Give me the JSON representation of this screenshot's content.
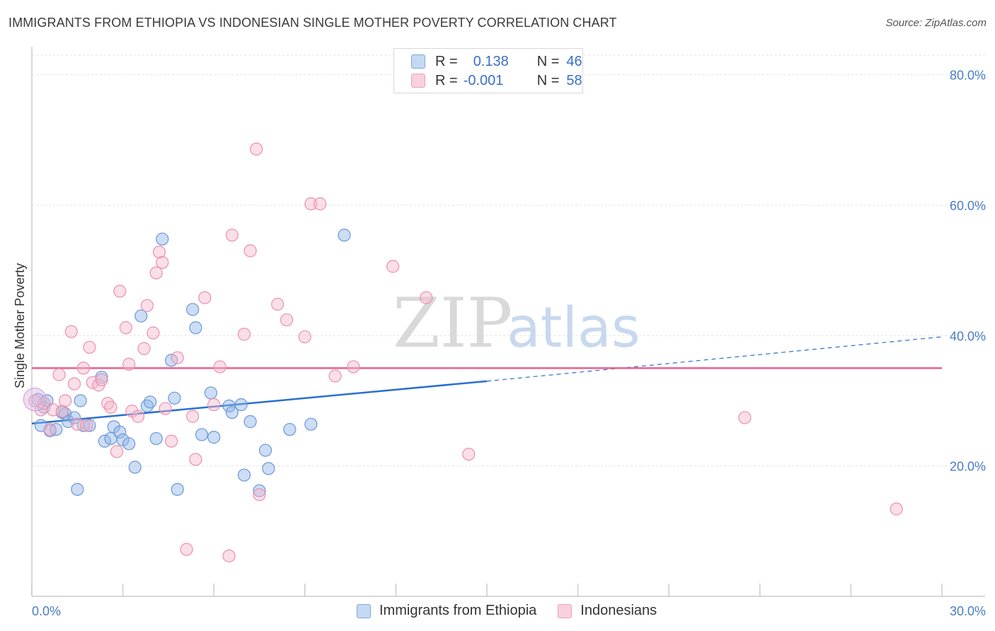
{
  "title": "IMMIGRANTS FROM ETHIOPIA VS INDONESIAN SINGLE MOTHER POVERTY CORRELATION CHART",
  "source": "Source: ZipAtlas.com",
  "watermark": {
    "zip": "ZIP",
    "atlas": "atlas"
  },
  "legend": {
    "rows": [
      {
        "r_label": "R =",
        "r_value": "0.138",
        "n_label": "N =",
        "n_value": "46"
      },
      {
        "r_label": "R =",
        "r_value": "-0.001",
        "n_label": "N =",
        "n_value": "58"
      }
    ]
  },
  "chart_data": {
    "type": "scatter",
    "title": "IMMIGRANTS FROM ETHIOPIA VS INDONESIAN SINGLE MOTHER POVERTY CORRELATION CHART",
    "xlabel": "",
    "ylabel": "Single Mother Poverty",
    "xlim": [
      0,
      30
    ],
    "ylim": [
      0,
      83
    ],
    "x_tick_labels": [
      "0.0%",
      "30.0%"
    ],
    "y_ticks": [
      20,
      40,
      60,
      80
    ],
    "y_tick_labels": [
      "20.0%",
      "40.0%",
      "60.0%",
      "80.0%"
    ],
    "grid": true,
    "legend_position": "top-center",
    "series": [
      {
        "name": "Immigrants from Ethiopia",
        "color": "#8db4e8",
        "stroke": "#6a98d8",
        "line_color": "#2a6fd0",
        "trend": {
          "x0": 0,
          "y0": 26.5,
          "x1": 15,
          "y1": 33.0,
          "dash_to_x": 30,
          "dash_to_y": 39.8
        },
        "points": [
          [
            0.2,
            30.2
          ],
          [
            0.3,
            26.2
          ],
          [
            0.4,
            29.0
          ],
          [
            0.5,
            30.0
          ],
          [
            0.6,
            25.4
          ],
          [
            0.8,
            25.6
          ],
          [
            1.0,
            28.2
          ],
          [
            1.1,
            28.0
          ],
          [
            1.2,
            26.8
          ],
          [
            1.4,
            27.4
          ],
          [
            1.6,
            30.0
          ],
          [
            1.7,
            26.2
          ],
          [
            1.9,
            26.2
          ],
          [
            2.3,
            33.6
          ],
          [
            2.4,
            23.8
          ],
          [
            2.6,
            24.2
          ],
          [
            2.7,
            26.0
          ],
          [
            2.9,
            25.2
          ],
          [
            3.0,
            24.0
          ],
          [
            3.2,
            23.4
          ],
          [
            3.4,
            19.8
          ],
          [
            3.6,
            43.0
          ],
          [
            3.8,
            29.2
          ],
          [
            3.9,
            29.8
          ],
          [
            4.1,
            24.2
          ],
          [
            4.3,
            54.8
          ],
          [
            4.6,
            36.2
          ],
          [
            4.7,
            30.4
          ],
          [
            5.3,
            44.0
          ],
          [
            5.4,
            41.2
          ],
          [
            5.6,
            24.8
          ],
          [
            5.9,
            31.2
          ],
          [
            6.0,
            24.4
          ],
          [
            6.5,
            29.2
          ],
          [
            6.6,
            28.2
          ],
          [
            6.9,
            29.4
          ],
          [
            7.0,
            18.6
          ],
          [
            7.2,
            26.8
          ],
          [
            7.5,
            16.2
          ],
          [
            7.7,
            22.4
          ],
          [
            7.8,
            19.6
          ],
          [
            8.5,
            25.6
          ],
          [
            9.2,
            26.4
          ],
          [
            10.3,
            55.4
          ],
          [
            4.8,
            16.4
          ],
          [
            1.5,
            16.4
          ]
        ]
      },
      {
        "name": "Indonesians",
        "color": "#f4b8cc",
        "stroke": "#ea90ae",
        "line_color": "#e8608a",
        "trend": {
          "x0": 0,
          "y0": 35.0,
          "x1": 30,
          "y1": 35.0
        },
        "points": [
          [
            0.1,
            30.0
          ],
          [
            0.3,
            28.6
          ],
          [
            0.4,
            29.6
          ],
          [
            0.6,
            25.6
          ],
          [
            0.7,
            28.6
          ],
          [
            0.9,
            34.0
          ],
          [
            1.0,
            28.4
          ],
          [
            1.1,
            30.0
          ],
          [
            1.3,
            40.6
          ],
          [
            1.4,
            32.6
          ],
          [
            1.5,
            26.4
          ],
          [
            1.7,
            35.0
          ],
          [
            1.8,
            26.2
          ],
          [
            1.9,
            38.2
          ],
          [
            2.0,
            32.8
          ],
          [
            2.2,
            32.4
          ],
          [
            2.3,
            33.2
          ],
          [
            2.5,
            29.6
          ],
          [
            2.6,
            29.0
          ],
          [
            2.8,
            22.2
          ],
          [
            2.9,
            46.8
          ],
          [
            3.1,
            41.2
          ],
          [
            3.2,
            35.6
          ],
          [
            3.3,
            28.4
          ],
          [
            3.5,
            27.6
          ],
          [
            3.7,
            38.0
          ],
          [
            3.8,
            44.6
          ],
          [
            4.0,
            40.4
          ],
          [
            4.1,
            49.6
          ],
          [
            4.2,
            52.8
          ],
          [
            4.3,
            51.2
          ],
          [
            4.4,
            28.8
          ],
          [
            4.6,
            23.8
          ],
          [
            4.8,
            36.6
          ],
          [
            5.1,
            7.2
          ],
          [
            5.3,
            27.6
          ],
          [
            5.4,
            21.0
          ],
          [
            5.7,
            45.8
          ],
          [
            6.0,
            29.4
          ],
          [
            6.2,
            35.2
          ],
          [
            6.5,
            6.2
          ],
          [
            6.6,
            55.4
          ],
          [
            7.0,
            40.2
          ],
          [
            7.2,
            53.0
          ],
          [
            7.4,
            68.6
          ],
          [
            7.5,
            15.6
          ],
          [
            8.1,
            44.8
          ],
          [
            8.4,
            42.4
          ],
          [
            9.0,
            39.8
          ],
          [
            9.2,
            60.2
          ],
          [
            9.5,
            60.2
          ],
          [
            10.0,
            33.8
          ],
          [
            10.6,
            35.2
          ],
          [
            11.9,
            50.6
          ],
          [
            13.0,
            45.8
          ],
          [
            14.4,
            21.8
          ],
          [
            23.5,
            27.4
          ],
          [
            28.5,
            13.4
          ]
        ]
      }
    ]
  }
}
